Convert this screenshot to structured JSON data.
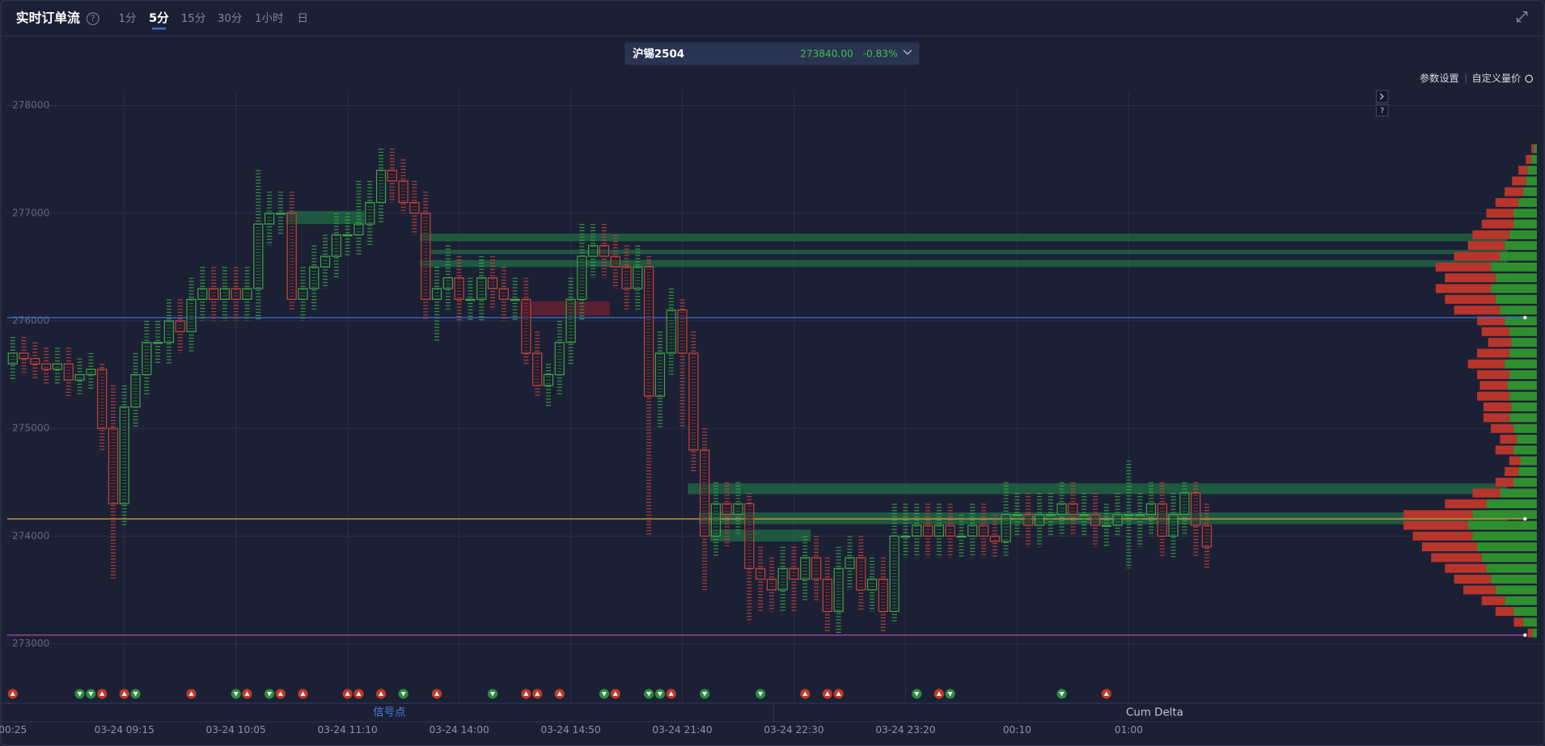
{
  "header": {
    "title": "实时订单流",
    "help": "?",
    "tabs": [
      "1分",
      "5分",
      "15分",
      "30分",
      "1小时",
      "日"
    ],
    "active_tab": 1
  },
  "instrument": {
    "name": "沪锡2504",
    "price": "273840.00",
    "change": "-0.83%"
  },
  "toolbar": [
    "参数设置",
    "自定义量价"
  ],
  "bottom_tabs": [
    "信号点",
    "Cum Delta"
  ],
  "chart_data": {
    "type": "candlestick",
    "categories": [
      "00:25",
      null,
      null,
      null,
      null,
      null,
      null,
      null,
      null,
      null,
      "03-24 09:15",
      null,
      null,
      null,
      null,
      null,
      null,
      null,
      null,
      null,
      "03-24 10:05",
      null,
      null,
      null,
      null,
      null,
      null,
      null,
      null,
      null,
      "03-24 11:10",
      null,
      null,
      null,
      null,
      null,
      null,
      null,
      null,
      null,
      "03-24 14:00",
      null,
      null,
      null,
      null,
      null,
      null,
      null,
      null,
      null,
      "03-24 14:50",
      null,
      null,
      null,
      null,
      null,
      null,
      null,
      null,
      null,
      "03-24 21:40",
      null,
      null,
      null,
      null,
      null,
      null,
      null,
      null,
      null,
      "03-24 22:30",
      null,
      null,
      null,
      null,
      null,
      null,
      null,
      null,
      null,
      "03-24 23:20",
      null,
      null,
      null,
      null,
      null,
      null,
      null,
      null,
      null,
      "00:10",
      null,
      null,
      null,
      null,
      null,
      null,
      null,
      null,
      null,
      "01:00",
      null,
      null,
      null,
      null,
      null,
      null,
      null
    ],
    "open": [
      275600,
      275700,
      275650,
      275600,
      275550,
      275600,
      275450,
      275500,
      275550,
      275000,
      274300,
      275200,
      275500,
      275800,
      275800,
      276000,
      275900,
      276200,
      276300,
      276200,
      276300,
      276200,
      276300,
      276900,
      277000,
      277000,
      276200,
      276300,
      276500,
      276600,
      276800,
      276800,
      276900,
      277100,
      277400,
      277300,
      277100,
      277000,
      276200,
      276300,
      276400,
      276200,
      276200,
      276400,
      276300,
      276200,
      276200,
      275700,
      275400,
      275500,
      275800,
      276200,
      276600,
      276700,
      276600,
      276500,
      276300,
      276500,
      275300,
      275700,
      276100,
      275700,
      274800,
      274000,
      274300,
      274200,
      274300,
      273700,
      273600,
      273500,
      273700,
      273600,
      273800,
      273600,
      273300,
      273700,
      273800,
      273500,
      273600,
      273300,
      274000,
      274000,
      274100,
      274000,
      274100,
      274000,
      274000,
      274100,
      274000,
      273950,
      274200,
      274200,
      274100,
      274200,
      274200,
      274300,
      274200,
      274200,
      274100,
      274100,
      274200,
      274200,
      274200,
      274300,
      274000,
      274200,
      274400,
      274100
    ],
    "high": [
      275850,
      275850,
      275800,
      275750,
      275750,
      275750,
      275650,
      275700,
      275600,
      275400,
      275400,
      275700,
      276000,
      276000,
      276200,
      276200,
      276400,
      276500,
      276500,
      276500,
      276500,
      276500,
      277400,
      277200,
      277200,
      277200,
      276500,
      276700,
      276800,
      277000,
      277000,
      277300,
      277300,
      277600,
      277600,
      277500,
      277300,
      277200,
      276500,
      276700,
      276600,
      276400,
      276600,
      276600,
      276500,
      276400,
      276400,
      275900,
      275600,
      276000,
      276400,
      276900,
      276900,
      276900,
      276800,
      276700,
      276700,
      276600,
      275900,
      276300,
      276200,
      275900,
      275000,
      274500,
      274500,
      274500,
      274400,
      273900,
      273800,
      273900,
      273900,
      274000,
      274000,
      273800,
      273900,
      274000,
      274000,
      273800,
      273800,
      274300,
      274300,
      274300,
      274300,
      274300,
      274300,
      274200,
      274300,
      274300,
      274200,
      274500,
      274400,
      274400,
      274400,
      274400,
      274500,
      274500,
      274400,
      274400,
      274300,
      274400,
      274700,
      274400,
      274500,
      274500,
      274400,
      274500,
      274500,
      274300
    ],
    "low": [
      275450,
      275500,
      275450,
      275400,
      275400,
      275300,
      275300,
      275350,
      274800,
      273600,
      274100,
      275000,
      275300,
      275600,
      275600,
      275700,
      275700,
      276000,
      276000,
      276000,
      276000,
      276000,
      276000,
      276700,
      276800,
      276100,
      276000,
      276100,
      276300,
      276400,
      276600,
      276600,
      276700,
      276900,
      277100,
      277000,
      276800,
      276000,
      275800,
      276100,
      276000,
      276000,
      276000,
      276100,
      276000,
      276000,
      275600,
      275300,
      275200,
      275300,
      275600,
      276000,
      276400,
      276400,
      276300,
      276100,
      276100,
      274000,
      275000,
      275500,
      275000,
      274600,
      273500,
      273800,
      273900,
      274000,
      273200,
      273300,
      273300,
      273300,
      273300,
      273400,
      273400,
      273100,
      273100,
      273500,
      273300,
      273300,
      273100,
      273200,
      273800,
      273800,
      273800,
      273800,
      273800,
      273800,
      273800,
      273800,
      273800,
      273800,
      274000,
      273900,
      273900,
      274000,
      274000,
      274000,
      274000,
      273900,
      273900,
      274000,
      273700,
      273900,
      274000,
      273800,
      273800,
      274000,
      273800,
      273700
    ],
    "close": [
      275700,
      275650,
      275600,
      275550,
      275600,
      275450,
      275500,
      275550,
      275000,
      274300,
      275200,
      275500,
      275800,
      275800,
      276000,
      275900,
      276200,
      276300,
      276200,
      276300,
      276200,
      276300,
      276900,
      277000,
      277000,
      276200,
      276300,
      276500,
      276600,
      276800,
      276800,
      276900,
      277100,
      277400,
      277300,
      277100,
      277000,
      276200,
      276300,
      276400,
      276200,
      276200,
      276400,
      276300,
      276200,
      276200,
      275700,
      275400,
      275500,
      275800,
      276200,
      276600,
      276700,
      276600,
      276500,
      276300,
      276500,
      275300,
      275700,
      276100,
      275700,
      274800,
      274000,
      274300,
      274200,
      274300,
      273700,
      273600,
      273500,
      273700,
      273600,
      273800,
      273600,
      273300,
      273700,
      273800,
      273500,
      273600,
      273300,
      274000,
      274000,
      274100,
      274000,
      274100,
      274000,
      274000,
      274100,
      274000,
      273950,
      274200,
      274200,
      274100,
      274200,
      274200,
      274300,
      274200,
      274200,
      274100,
      274100,
      274200,
      274200,
      274200,
      274300,
      274000,
      274200,
      274400,
      274100,
      273900
    ],
    "up_color": "#3aa845",
    "down_color": "#c8443a",
    "ylim": [
      272580,
      278140
    ],
    "yticks": [
      273000,
      274000,
      275000,
      276000,
      277000,
      278000
    ],
    "grid": true,
    "levels": [
      {
        "value": 276030,
        "color": "#3d6fd6"
      },
      {
        "value": 274160,
        "color": "#d9a441"
      },
      {
        "value": 273080,
        "color": "#c04bc9"
      }
    ],
    "zones": [
      {
        "low": 276900,
        "high": 277020,
        "start": 25,
        "end": 31,
        "color": "#1f6b45"
      },
      {
        "low": 276740,
        "high": 276810,
        "start": 37,
        "end": null,
        "color": "#1f6b45"
      },
      {
        "low": 276620,
        "high": 276660,
        "start": 38,
        "end": null,
        "color": "#1f6b45"
      },
      {
        "low": 276500,
        "high": 276565,
        "start": 37,
        "end": null,
        "color": "#1f6b45"
      },
      {
        "low": 276050,
        "high": 276180,
        "start": 46,
        "end": 53,
        "color": "#6e2030"
      },
      {
        "low": 274390,
        "high": 274490,
        "start": 61,
        "end": null,
        "color": "#1f6b45"
      },
      {
        "low": 274110,
        "high": 274220,
        "start": 62,
        "end": null,
        "color": "#1f6b45"
      },
      {
        "low": 273950,
        "high": 274060,
        "start": 63,
        "end": 71,
        "color": "#1f6b45"
      }
    ],
    "signals": {
      "up": [
        0,
        8,
        10,
        16,
        21,
        24,
        26,
        30,
        31,
        33,
        38,
        46,
        47,
        49,
        54,
        59,
        71,
        73,
        74,
        83,
        98
      ],
      "down": [
        6,
        7,
        11,
        20,
        23,
        35,
        43,
        53,
        57,
        58,
        62,
        67,
        81,
        84,
        94
      ]
    },
    "profile": {
      "levels": [
        273100,
        273200,
        273300,
        273400,
        273500,
        273600,
        273700,
        273800,
        273900,
        274000,
        274100,
        274200,
        274300,
        274400,
        274500,
        274600,
        274700,
        274800,
        274900,
        275000,
        275100,
        275200,
        275300,
        275400,
        275500,
        275600,
        275700,
        275800,
        275900,
        276000,
        276100,
        276200,
        276300,
        276400,
        276500,
        276600,
        276700,
        276800,
        276900,
        277000,
        277100,
        277200,
        277300,
        277400,
        277500,
        277600
      ],
      "buy": [
        5,
        15,
        25,
        35,
        45,
        50,
        55,
        60,
        65,
        70,
        75,
        70,
        55,
        40,
        25,
        20,
        18,
        25,
        22,
        25,
        30,
        28,
        30,
        32,
        30,
        35,
        30,
        28,
        30,
        35,
        40,
        45,
        50,
        45,
        50,
        40,
        35,
        30,
        25,
        25,
        20,
        15,
        12,
        10,
        6,
        3
      ],
      "sell": [
        5,
        10,
        20,
        25,
        35,
        40,
        45,
        55,
        60,
        65,
        70,
        75,
        45,
        30,
        20,
        15,
        12,
        20,
        18,
        25,
        28,
        30,
        35,
        30,
        35,
        40,
        35,
        25,
        30,
        30,
        50,
        55,
        60,
        55,
        60,
        50,
        40,
        40,
        35,
        30,
        25,
        20,
        15,
        10,
        6,
        3
      ],
      "xlim": [
        0,
        150
      ]
    }
  }
}
